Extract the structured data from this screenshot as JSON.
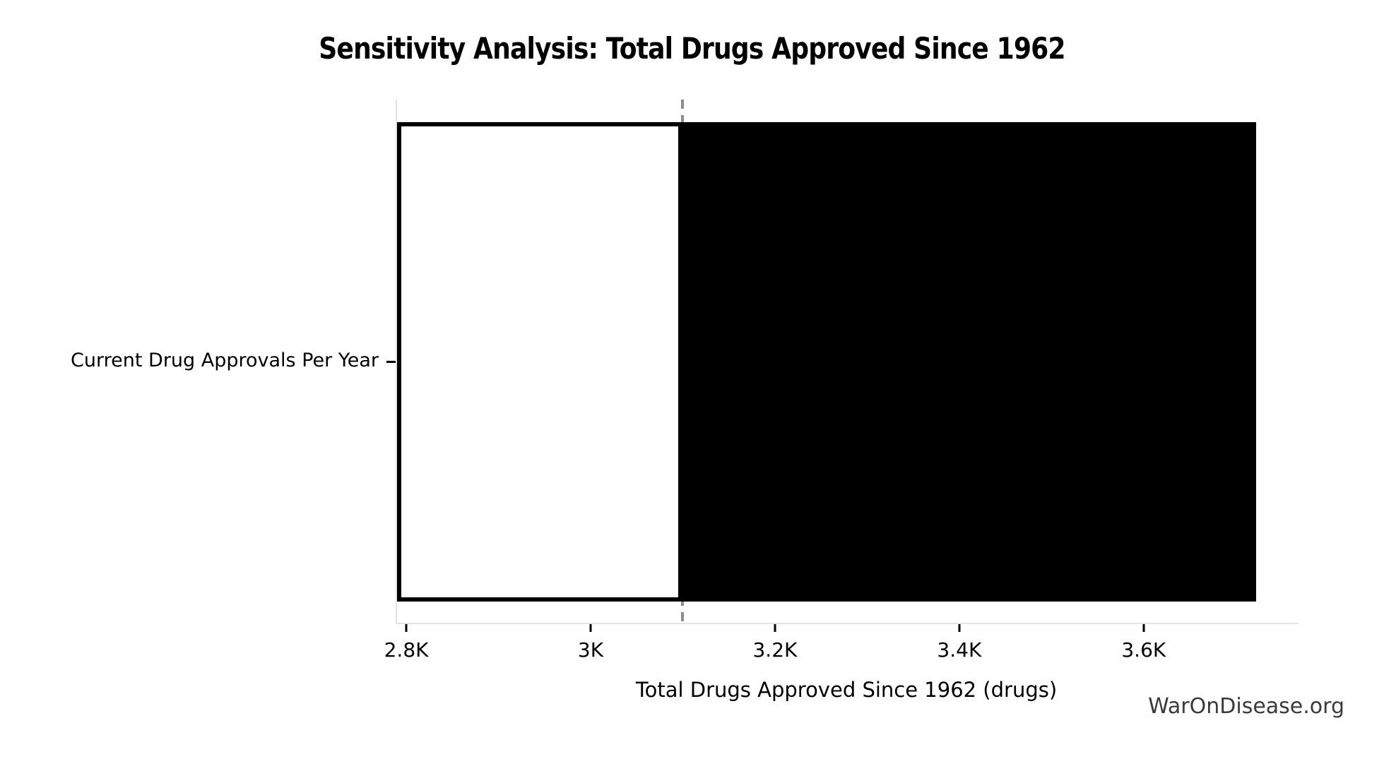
{
  "title": "Sensitivity Analysis: Total Drugs Approved Since 1962",
  "watermark": "WarOnDisease.org",
  "chart_data": {
    "type": "bar",
    "subtype": "tornado-sensitivity",
    "orientation": "horizontal",
    "title": "Sensitivity Analysis: Total Drugs Approved Since 1962",
    "xlabel": "Total Drugs Approved Since 1962 (drugs)",
    "ylabel": "",
    "categories": [
      "Current Drug Approvals Per Year"
    ],
    "base_value": 3100,
    "low": 2790,
    "high": 3722,
    "series": [
      {
        "name": "low-side",
        "from": 2790,
        "to": 3100,
        "fill": "#ffffff",
        "edge": "#000000"
      },
      {
        "name": "high-side",
        "from": 3100,
        "to": 3722,
        "fill": "#000000",
        "edge": "none"
      }
    ],
    "xlim": [
      2790,
      3768
    ],
    "x_ticks": [
      {
        "value": 2800,
        "label": "2.8K"
      },
      {
        "value": 3000,
        "label": "3K"
      },
      {
        "value": 3200,
        "label": "3.2K"
      },
      {
        "value": 3400,
        "label": "3.4K"
      },
      {
        "value": 3600,
        "label": "3.6K"
      }
    ],
    "grid": false,
    "legend": "none",
    "reference_line": {
      "value": 3100,
      "style": "dashed",
      "color": "#8c8c8c"
    },
    "colors": {
      "bar_low_fill": "#ffffff",
      "bar_edge": "#000000",
      "bar_high_fill": "#000000",
      "spine": "#e2e2e2",
      "tick": "#000000",
      "watermark": "#3a3a3a"
    }
  }
}
